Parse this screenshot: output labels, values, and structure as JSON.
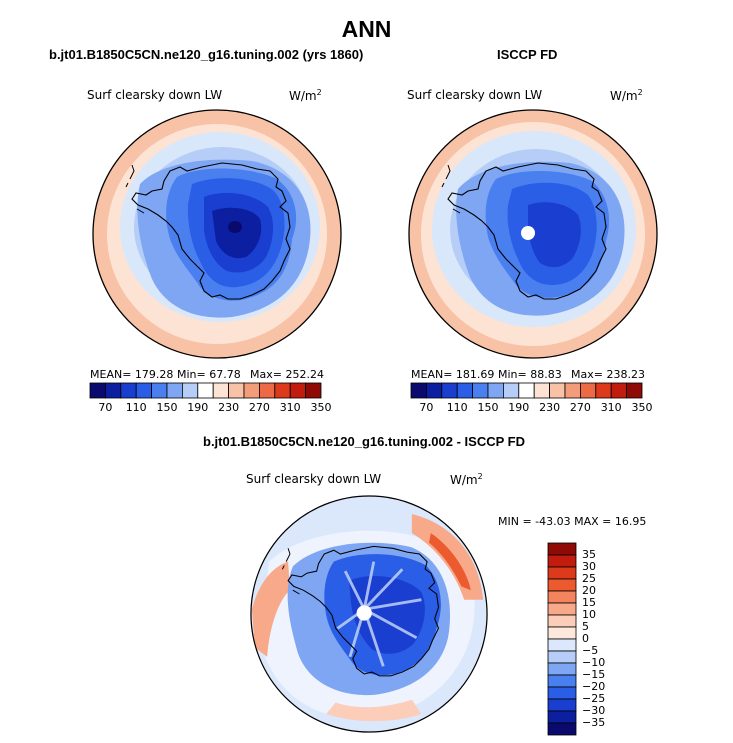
{
  "main_title": "ANN",
  "panels": [
    {
      "id": "model",
      "title": "b.jt01.B1850C5CN.ne120_g16.tuning.002 (yrs 1860)",
      "variable": "Surf clearsky down LW",
      "units": "W/m",
      "units_sup": "2",
      "stats": {
        "mean": "MEAN= 179.28",
        "min": "Min=  67.78",
        "max": "Max= 252.24"
      }
    },
    {
      "id": "obs",
      "title": "ISCCP FD",
      "variable": "Surf clearsky down LW",
      "units": "W/m",
      "units_sup": "2",
      "stats": {
        "mean": "MEAN= 181.69",
        "min": "Min=  88.83",
        "max": "Max= 238.23"
      }
    },
    {
      "id": "diff",
      "title": "b.jt01.B1850C5CN.ne120_g16.tuning.002 - ISCCP FD",
      "variable": "Surf clearsky down LW",
      "units": "W/m",
      "units_sup": "2",
      "minmax": "MIN = -43.03 MAX =  16.95"
    }
  ],
  "colorbar_abs": {
    "labels": [
      "70",
      "110",
      "150",
      "190",
      "230",
      "270",
      "310",
      "350"
    ],
    "colors": [
      "#0a0a6e",
      "#0c1fa0",
      "#1a3fd0",
      "#2b5ee6",
      "#4a7ff0",
      "#7ea6f3",
      "#b5cdf7",
      "#ffffff",
      "#fde3d4",
      "#f8c2a6",
      "#f39c7a",
      "#ec6a45",
      "#dd3a1c",
      "#c21c0e",
      "#8f0a04"
    ]
  },
  "colorbar_diff": {
    "labels": [
      "35",
      "30",
      "25",
      "20",
      "15",
      "10",
      "5",
      "0",
      "−5",
      "−10",
      "−15",
      "−20",
      "−25",
      "−30",
      "−35"
    ],
    "colors": [
      "#8f0a04",
      "#c21c0e",
      "#dd3a1c",
      "#ec5a30",
      "#f3845e",
      "#f8a98a",
      "#fccdb8",
      "#fde8dc",
      "#dbe8fb",
      "#b5cdf7",
      "#7ea6f3",
      "#4a7ff0",
      "#2b5ee6",
      "#1a3fd0",
      "#0c1fa0",
      "#0a0a6e"
    ]
  },
  "map_colors": {
    "ocean_outer": "#f8c2a6",
    "ocean_mid": "#fde3d4",
    "ocean_cold": "#d9e7fb",
    "sea_ice": "#b5cdf7",
    "coast_blue": "#7ea6f3",
    "ant_edge": "#4a7ff0",
    "ant_plateau": "#2b5ee6",
    "ant_core": "#1a3fd0",
    "ant_deep": "#0c1fa0",
    "ant_pole": "#0a0a6e",
    "diff_bg": "#dbe8fb",
    "diff_pos": "#f8a98a",
    "diff_pos2": "#ec5a30",
    "diff_neg": "#7ea6f3",
    "diff_neg2": "#2b5ee6",
    "diff_neg3": "#1a3fd0"
  }
}
